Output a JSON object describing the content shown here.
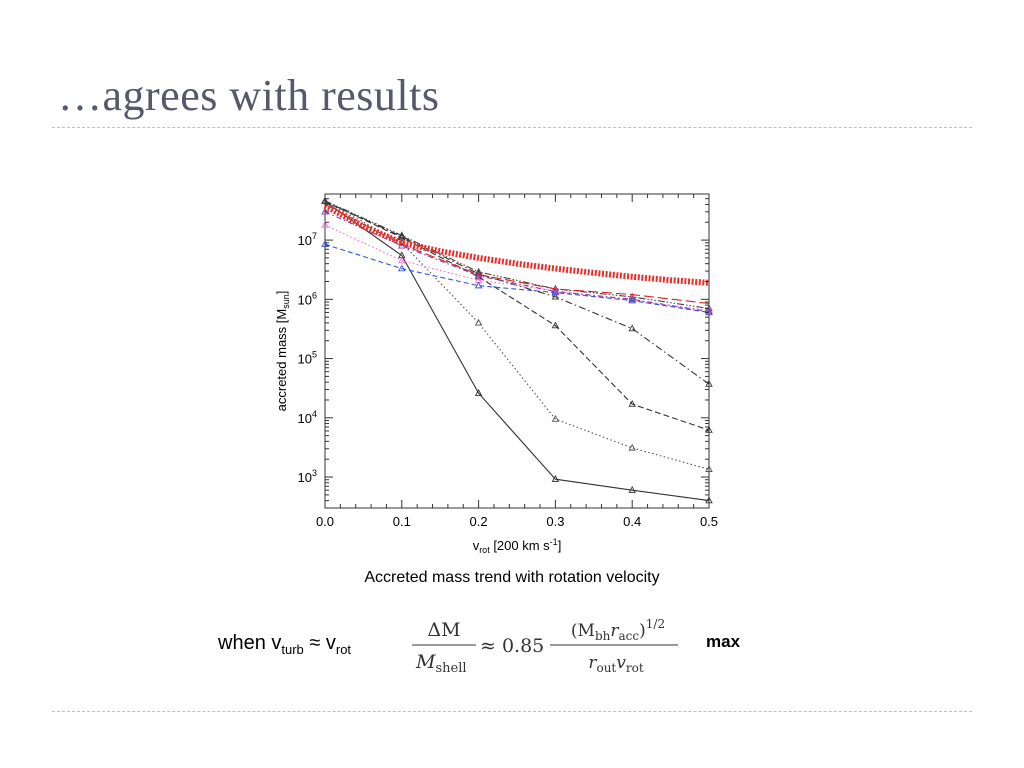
{
  "slide": {
    "title": "…agrees with results",
    "caption": "Accreted mass trend with rotation velocity",
    "condition": {
      "prefix": "when v",
      "sub1": "turb",
      "mid": " ≈ v",
      "sub2": "rot"
    },
    "formula": {
      "lhs_num": "ΔM",
      "lhs_den_main": "M",
      "lhs_den_sub": "shell",
      "approx": "≈ 0.85",
      "rhs_num": "(M",
      "rhs_num_sub1": "bh",
      "rhs_num_r": "r",
      "rhs_num_sub2": "acc",
      "rhs_num_close": ")",
      "rhs_num_exp": "1/2",
      "rhs_den_r": "r",
      "rhs_den_sub1": "out",
      "rhs_den_v": "v",
      "rhs_den_sub2": "rot"
    },
    "max_label": "max"
  },
  "chart_data": {
    "type": "line",
    "xlabel": {
      "main": "v",
      "sub": "rot",
      "rest": " [200 km s",
      "sup": "-1",
      "close": "]"
    },
    "ylabel": {
      "main": "accreted mass [M",
      "sub": "sun",
      "close": "]"
    },
    "xlim": [
      0,
      0.5
    ],
    "ylim": [
      300,
      60000000
    ],
    "yscale": "log",
    "x_ticks": [
      "0.0",
      "0.1",
      "0.2",
      "0.3",
      "0.4",
      "0.5"
    ],
    "y_ticks": [
      {
        "base": "10",
        "exp": "3",
        "value": 1000
      },
      {
        "base": "10",
        "exp": "4",
        "value": 10000
      },
      {
        "base": "10",
        "exp": "5",
        "value": 100000
      },
      {
        "base": "10",
        "exp": "6",
        "value": 1000000
      },
      {
        "base": "10",
        "exp": "7",
        "value": 10000000
      }
    ],
    "grid": false,
    "series": [
      {
        "color": "#333333",
        "dash": "",
        "marker": "triangle",
        "x": [
          0,
          0.1,
          0.2,
          0.3,
          0.4,
          0.5
        ],
        "y": [
          45000000,
          5500000,
          26000,
          920,
          600,
          400
        ]
      },
      {
        "color": "#555555",
        "dash": "1.5,2.5",
        "marker": "triangle",
        "x": [
          0,
          0.1,
          0.2,
          0.3,
          0.4,
          0.5
        ],
        "y": [
          45000000,
          9000000,
          400000,
          9500,
          3100,
          1350
        ]
      },
      {
        "color": "#333333",
        "dash": "6,3",
        "marker": "triangle",
        "x": [
          0,
          0.1,
          0.2,
          0.3,
          0.4,
          0.5
        ],
        "y": [
          45000000,
          11000000,
          2400000,
          360000,
          17000,
          6200
        ]
      },
      {
        "color": "#333333",
        "dash": "7,3,1.5,3",
        "marker": "triangle",
        "x": [
          0,
          0.1,
          0.2,
          0.3,
          0.4,
          0.5
        ],
        "y": [
          45000000,
          11500000,
          2700000,
          1100000,
          320000,
          37000
        ]
      },
      {
        "color": "#444444",
        "dash": "7,2,1.5,2,1.5,2,1.5,2",
        "marker": "triangle",
        "x": [
          0,
          0.1,
          0.2,
          0.3,
          0.4,
          0.5
        ],
        "y": [
          46000000,
          12000000,
          2900000,
          1500000,
          1100000,
          700000
        ]
      },
      {
        "color": "#ff66dd",
        "dash": "1.5,2.5",
        "marker": "triangle",
        "x": [
          0,
          0.1,
          0.2,
          0.3,
          0.4,
          0.5
        ],
        "y": [
          18000000,
          4500000,
          2100000,
          1400000,
          950000,
          650000
        ]
      },
      {
        "color": "#3355dd",
        "dash": "5,3",
        "marker": "triangle",
        "x": [
          0,
          0.1,
          0.2,
          0.3,
          0.4,
          0.5
        ],
        "y": [
          8500000,
          3300000,
          1700000,
          1300000,
          950000,
          600000
        ]
      },
      {
        "color": "#9933aa",
        "dash": "5,3,1.5,3",
        "marker": "triangle",
        "x": [
          0,
          0.1,
          0.2,
          0.3,
          0.4,
          0.5
        ],
        "y": [
          30000000,
          8000000,
          2500000,
          1350000,
          1000000,
          620000
        ]
      },
      {
        "color": "#dd2222",
        "dash": "10,4",
        "marker": "none",
        "x": [
          0,
          0.1,
          0.2,
          0.3,
          0.4,
          0.5
        ],
        "y": [
          40000000,
          8500000,
          2600000,
          1500000,
          1200000,
          850000
        ]
      },
      {
        "color": "#e8302a",
        "dash": "2,1.6",
        "marker": "none",
        "width": 6,
        "x": [
          0,
          0.05,
          0.1,
          0.15,
          0.2,
          0.25,
          0.3,
          0.35,
          0.4,
          0.45,
          0.5
        ],
        "y": [
          38000000,
          17000000,
          9000000,
          6500000,
          5000000,
          4000000,
          3300000,
          2800000,
          2400000,
          2100000,
          1900000
        ]
      }
    ]
  }
}
